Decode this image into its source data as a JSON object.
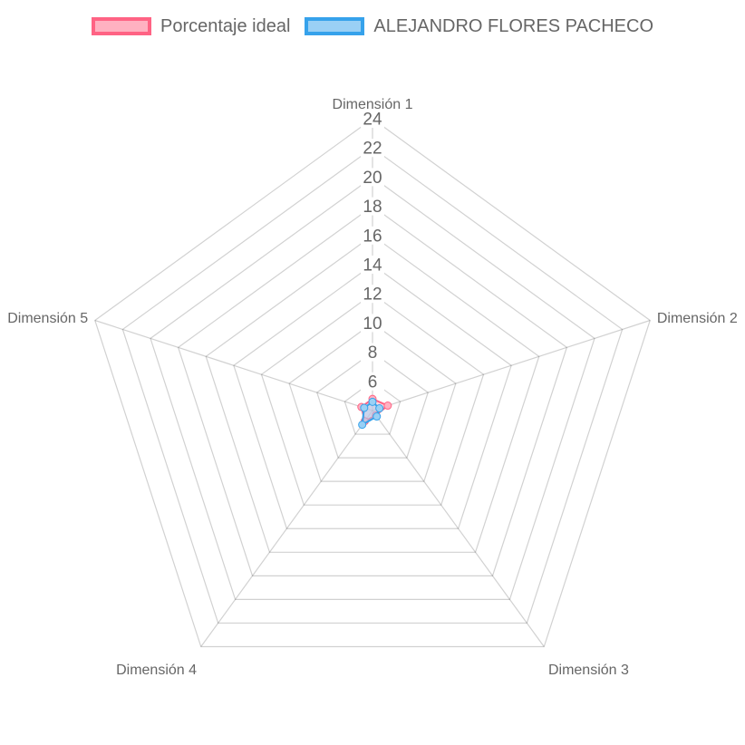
{
  "chart_data": {
    "type": "radar",
    "labels": [
      "Dimensión 1",
      "Dimensión 2",
      "Dimensión 3",
      "Dimensión 4",
      "Dimensión 5"
    ],
    "scale": {
      "min": 4,
      "max": 24,
      "step": 2,
      "ticks": [
        "6",
        "8",
        "10",
        "12",
        "14",
        "16",
        "18",
        "20",
        "22",
        "24"
      ]
    },
    "grid": true,
    "legend_position": "top",
    "series": [
      {
        "name": "Porcentaje ideal",
        "values": [
          4.8,
          5.1,
          4.4,
          4.9,
          4.8
        ],
        "border_color": "#ff6384",
        "fill_color": "#ffb1c1"
      },
      {
        "name": "ALEJANDRO FLORES PACHECO",
        "values": [
          4.6,
          4.5,
          4.5,
          5.2,
          4.6
        ],
        "border_color": "#36a2eb",
        "fill_color": "#9ad0f5"
      }
    ]
  }
}
